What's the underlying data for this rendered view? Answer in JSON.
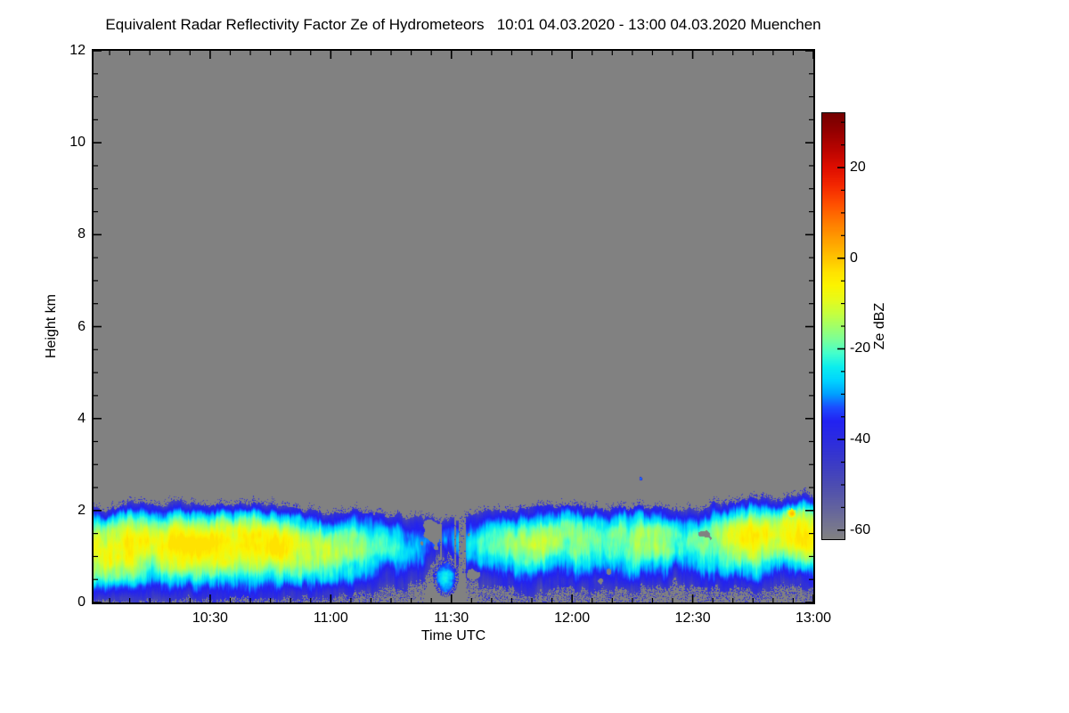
{
  "figure_background": "#ffffff",
  "chart_data": {
    "type": "heatmap",
    "title": "Equivalent Radar Reflectivity Factor Ze of Hydrometeors   10:01 04.03.2020 - 13:00 04.03.2020 Muenchen",
    "xlabel": "Time UTC",
    "ylabel": "Height km",
    "colorbar_label": "Ze dBZ",
    "x_axis": {
      "start": "10:01",
      "end": "13:00",
      "span_minutes": 179,
      "major_ticks": [
        {
          "label": "10:30",
          "minute": 29
        },
        {
          "label": "11:00",
          "minute": 59
        },
        {
          "label": "11:30",
          "minute": 89
        },
        {
          "label": "12:00",
          "minute": 119
        },
        {
          "label": "12:30",
          "minute": 149
        },
        {
          "label": "13:00",
          "minute": 179
        }
      ],
      "minor_first_minute": 4,
      "minor_step_minutes": 5
    },
    "y_axis": {
      "min": 0,
      "max": 12,
      "major_ticks": [
        {
          "label": "12",
          "km": 12
        },
        {
          "label": "10",
          "km": 10
        },
        {
          "label": "8",
          "km": 8
        },
        {
          "label": "6",
          "km": 6
        },
        {
          "label": "4",
          "km": 4
        },
        {
          "label": "2",
          "km": 2
        },
        {
          "label": "0",
          "km": 0
        }
      ],
      "minor_step_km": 0.5
    },
    "colorbar": {
      "vmin": -62,
      "vmax": 32,
      "major_ticks": [
        {
          "label": "20",
          "value": 20
        },
        {
          "label": "0",
          "value": 0
        },
        {
          "label": "-20",
          "value": -20
        },
        {
          "label": "-40",
          "value": -40
        },
        {
          "label": "-60",
          "value": -60
        }
      ],
      "minor_step": 5,
      "no_echo_below_dbz": -60
    },
    "no_echo_color": "#818181",
    "colormap_dbz_stops": [
      [
        -62,
        "#818181"
      ],
      [
        -60,
        "#7a7a8c"
      ],
      [
        -55,
        "#62629f"
      ],
      [
        -50,
        "#4c4cb2"
      ],
      [
        -45,
        "#3a3ac8"
      ],
      [
        -40,
        "#2b2be0"
      ],
      [
        -36,
        "#2222f2"
      ],
      [
        -33,
        "#1c4cff"
      ],
      [
        -30,
        "#00a0ff"
      ],
      [
        -27,
        "#00d4ff"
      ],
      [
        -24,
        "#0ceeee"
      ],
      [
        -21,
        "#44ffcc"
      ],
      [
        -18,
        "#7aff99"
      ],
      [
        -15,
        "#a2ff68"
      ],
      [
        -12,
        "#c8ff3c"
      ],
      [
        -9,
        "#e8fa1a"
      ],
      [
        -6,
        "#fcf400"
      ],
      [
        -3,
        "#ffe200"
      ],
      [
        0,
        "#ffc400"
      ],
      [
        4,
        "#ffa000"
      ],
      [
        8,
        "#ff7a00"
      ],
      [
        12,
        "#ff5000"
      ],
      [
        16,
        "#f42800"
      ],
      [
        20,
        "#df0e00"
      ],
      [
        24,
        "#ba0400"
      ],
      [
        28,
        "#950000"
      ],
      [
        32,
        "#750000"
      ]
    ],
    "cloud_layer": {
      "sample_format": [
        "minute",
        "cloud_top_km",
        "cloud_base_km",
        "core_dbz",
        "fill_fraction"
      ],
      "samples": [
        [
          0,
          2.05,
          0.05,
          -6,
          0.95
        ],
        [
          5,
          2.1,
          0.05,
          -5,
          0.95
        ],
        [
          10,
          2.15,
          0.05,
          -5,
          0.95
        ],
        [
          15,
          2.1,
          0.08,
          -7,
          0.95
        ],
        [
          20,
          2.15,
          0.08,
          -5,
          0.95
        ],
        [
          25,
          2.15,
          0.08,
          -5,
          0.95
        ],
        [
          30,
          2.1,
          0.08,
          -6,
          0.95
        ],
        [
          35,
          2.1,
          0.1,
          -5,
          0.95
        ],
        [
          40,
          2.15,
          0.1,
          -5,
          0.94
        ],
        [
          45,
          2.1,
          0.1,
          -6,
          0.94
        ],
        [
          50,
          2.05,
          0.1,
          -10,
          0.93
        ],
        [
          55,
          2.0,
          0.12,
          -13,
          0.92
        ],
        [
          60,
          2.0,
          0.15,
          -15,
          0.9
        ],
        [
          65,
          2.0,
          0.2,
          -17,
          0.88
        ],
        [
          70,
          1.95,
          0.25,
          -20,
          0.85
        ],
        [
          75,
          1.9,
          0.3,
          -24,
          0.8
        ],
        [
          80,
          1.85,
          0.5,
          -27,
          0.7
        ],
        [
          85,
          1.8,
          0.8,
          -30,
          0.55
        ],
        [
          88,
          1.75,
          0.9,
          -31,
          0.5
        ],
        [
          92,
          1.9,
          0.65,
          -26,
          0.62
        ],
        [
          96,
          1.95,
          0.4,
          -22,
          0.75
        ],
        [
          100,
          2.0,
          0.3,
          -19,
          0.84
        ],
        [
          105,
          2.0,
          0.25,
          -17,
          0.87
        ],
        [
          110,
          2.05,
          0.2,
          -15,
          0.9
        ],
        [
          115,
          2.05,
          0.25,
          -16,
          0.86
        ],
        [
          120,
          2.1,
          0.3,
          -15,
          0.85
        ],
        [
          125,
          2.05,
          0.3,
          -17,
          0.8
        ],
        [
          130,
          2.05,
          0.35,
          -19,
          0.78
        ],
        [
          135,
          2.1,
          0.3,
          -15,
          0.82
        ],
        [
          140,
          2.1,
          0.35,
          -17,
          0.8
        ],
        [
          145,
          2.05,
          0.4,
          -18,
          0.78
        ],
        [
          150,
          2.05,
          0.35,
          -16,
          0.8
        ],
        [
          155,
          2.1,
          0.3,
          -12,
          0.85
        ],
        [
          160,
          2.2,
          0.3,
          -9,
          0.88
        ],
        [
          165,
          2.25,
          0.25,
          -7,
          0.9
        ],
        [
          170,
          2.3,
          0.3,
          -5,
          0.9
        ],
        [
          175,
          2.35,
          0.3,
          -4,
          0.9
        ],
        [
          179,
          2.3,
          0.3,
          -7,
          0.88
        ]
      ],
      "features": [
        {
          "type": "low-level-patch",
          "minute": 87.5,
          "height_km": 0.55,
          "half_height_km": 0.42,
          "half_width_min": 3.2,
          "dbz": -26
        },
        {
          "type": "isolated-speck",
          "minute": 136,
          "height_km": 2.7,
          "half_height_km": 0.05,
          "half_width_min": 0.35,
          "dbz": -28
        },
        {
          "type": "warm-spot",
          "minute": 173.5,
          "height_km": 1.95,
          "half_height_km": 0.12,
          "half_width_min": 1.2,
          "dbz": 0
        }
      ]
    }
  }
}
